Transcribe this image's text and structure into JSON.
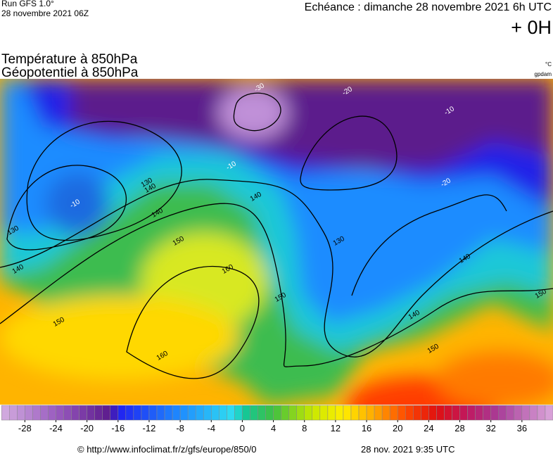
{
  "header": {
    "run": "Run GFS 1.0°",
    "run_date": "28 novembre 2021 06Z",
    "echeance": "Echéance : dimanche 28 novembre 2021 6h UTC",
    "offset": "+ 0H",
    "title_line1": "Température à 850hPa",
    "title_line2": "Géopotentiel à 850hPa",
    "unit_temp": "°C",
    "unit_geo": "gpdam"
  },
  "contour_labels": [
    "140",
    "130",
    "140",
    "150",
    "160",
    "150",
    "160",
    "150",
    "140",
    "130",
    "140",
    "150",
    "150",
    "140",
    "140",
    "130",
    "-10",
    "-20",
    "-10",
    "-20",
    "-30",
    "-10"
  ],
  "colorbar": {
    "range": [
      -31.2,
      40
    ],
    "ticks": [
      -28,
      -24,
      -20,
      -16,
      -12,
      -8,
      -4,
      0,
      4,
      8,
      12,
      16,
      20,
      24,
      28,
      32,
      36
    ],
    "stops": [
      {
        "value": -31,
        "color": "#d4aee0"
      },
      {
        "value": -24,
        "color": "#9a5cc0"
      },
      {
        "value": -17,
        "color": "#5c1a8c"
      },
      {
        "value": -16,
        "color": "#2020f0"
      },
      {
        "value": -8,
        "color": "#1e8cff"
      },
      {
        "value": -1,
        "color": "#30e0f0"
      },
      {
        "value": 0,
        "color": "#10c8a0"
      },
      {
        "value": 4,
        "color": "#40c040"
      },
      {
        "value": 9,
        "color": "#c8e800"
      },
      {
        "value": 13,
        "color": "#ffee00"
      },
      {
        "value": 17,
        "color": "#ffa800"
      },
      {
        "value": 21,
        "color": "#ff4a00"
      },
      {
        "value": 25,
        "color": "#e01010"
      },
      {
        "value": 29,
        "color": "#c01860"
      },
      {
        "value": 33,
        "color": "#a83c98"
      },
      {
        "value": 40,
        "color": "#dca8dc"
      }
    ]
  },
  "footer": {
    "url": "© http://www.infoclimat.fr/z/gfs/europe/850/0",
    "timestamp": "28 nov. 2021  9:35 UTC"
  }
}
